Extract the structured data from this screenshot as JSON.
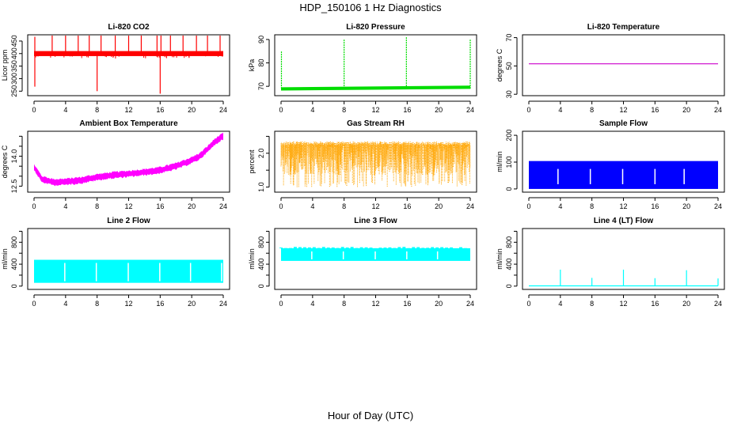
{
  "title": "HDP_150106  1 Hz Diagnostics",
  "xlabel": "Hour of Day (UTC)",
  "chart_data": [
    {
      "type": "line",
      "title": "Li-820 CO2",
      "ylabel": "Licor ppm",
      "color": "#ff0000",
      "xlim": [
        0,
        24
      ],
      "ylim": [
        232,
        475
      ],
      "xticks": [
        0,
        4,
        8,
        12,
        16,
        20,
        24
      ],
      "yticks": [
        250,
        300,
        350,
        400,
        450
      ],
      "band": [
        390,
        410
      ],
      "spikes_up": [
        [
          0.1,
          467
        ],
        [
          2.3,
          472
        ],
        [
          4.0,
          472
        ],
        [
          5.6,
          472
        ],
        [
          7.0,
          472
        ],
        [
          8.5,
          472
        ],
        [
          10.3,
          472
        ],
        [
          12.0,
          472
        ],
        [
          13.6,
          472
        ],
        [
          15.6,
          472
        ],
        [
          16.1,
          472
        ],
        [
          17.3,
          472
        ],
        [
          18.9,
          472
        ],
        [
          20.6,
          472
        ],
        [
          22.0,
          472
        ],
        [
          23.6,
          472
        ]
      ],
      "spikes_down": [
        [
          0.1,
          268
        ],
        [
          8.0,
          250
        ],
        [
          16.0,
          240
        ]
      ]
    },
    {
      "type": "line",
      "title": "Li-820 Pressure",
      "ylabel": "kPa",
      "color": "#00dd00",
      "xlim": [
        0,
        24
      ],
      "ylim": [
        66,
        92
      ],
      "xticks": [
        0,
        4,
        8,
        12,
        16,
        20,
        24
      ],
      "yticks": [
        70,
        80,
        90
      ],
      "band_start": [
        68.2,
        69.6
      ],
      "band_end": [
        68.9,
        70.3
      ],
      "spikes_up": [
        [
          0.05,
          85
        ],
        [
          8.0,
          90
        ],
        [
          15.9,
          91
        ],
        [
          24.0,
          90
        ]
      ]
    },
    {
      "type": "line",
      "title": "Li-820 Temperature",
      "ylabel": "degrees C",
      "color": "#cc00cc",
      "xlim": [
        0,
        24
      ],
      "ylim": [
        29,
        72
      ],
      "xticks": [
        0,
        4,
        8,
        12,
        16,
        20,
        24
      ],
      "yticks": [
        30,
        50,
        70
      ],
      "constant": 51.5
    },
    {
      "type": "line",
      "title": "Ambient Box Temperature",
      "ylabel": "degrees C",
      "color": "#ff00ff",
      "xlim": [
        0,
        24
      ],
      "ylim": [
        12.2,
        15.25
      ],
      "xticks": [
        0,
        4,
        8,
        12,
        16,
        20,
        24
      ],
      "yticks": [
        12.5,
        13.0,
        13.5,
        14.0,
        14.5,
        15.0
      ],
      "ytick_labels": [
        "12.5",
        "",
        "",
        "14.0",
        "",
        ""
      ],
      "trend": [
        [
          0,
          13.45
        ],
        [
          1.0,
          12.85
        ],
        [
          2.5,
          12.7
        ],
        [
          4,
          12.72
        ],
        [
          6,
          12.8
        ],
        [
          8,
          12.95
        ],
        [
          10,
          13.05
        ],
        [
          12,
          13.12
        ],
        [
          14,
          13.2
        ],
        [
          16,
          13.3
        ],
        [
          18,
          13.5
        ],
        [
          20,
          13.8
        ],
        [
          21,
          14.0
        ],
        [
          22,
          14.35
        ],
        [
          23,
          14.75
        ],
        [
          24,
          15.0
        ]
      ],
      "half_width": 0.15
    },
    {
      "type": "line",
      "title": "Gas Stream RH",
      "ylabel": "percent",
      "color": "#ffa500",
      "xlim": [
        0,
        24
      ],
      "ylim": [
        0.85,
        2.65
      ],
      "xticks": [
        0,
        4,
        8,
        12,
        16,
        20,
        24
      ],
      "yticks": [
        1.0,
        1.5,
        2.0,
        2.5
      ],
      "ytick_labels": [
        "1.0",
        "",
        "2.0",
        ""
      ],
      "upper": 2.35,
      "lower": 1.0
    },
    {
      "type": "line",
      "title": "Sample Flow",
      "ylabel": "ml/min",
      "color": "#0000ff",
      "xlim": [
        0,
        24
      ],
      "ylim": [
        -12,
        215
      ],
      "xticks": [
        0,
        4,
        8,
        12,
        16,
        20,
        24
      ],
      "yticks": [
        0,
        100,
        200
      ],
      "band": [
        0,
        104
      ],
      "gaps": [
        3.7,
        7.8,
        11.9,
        16.0,
        19.7
      ]
    },
    {
      "type": "line",
      "title": "Line 2 Flow",
      "ylabel": "ml/min",
      "color": "#00ffff",
      "xlim": [
        0,
        24
      ],
      "ylim": [
        -60,
        1050
      ],
      "xticks": [
        0,
        4,
        8,
        12,
        16,
        20,
        24
      ],
      "yticks": [
        0,
        200,
        400,
        600,
        800,
        1000
      ],
      "ytick_labels": [
        "0",
        "",
        "400",
        "",
        "800",
        ""
      ],
      "band": [
        60,
        480
      ],
      "gaps": [
        3.9,
        7.9,
        11.95,
        15.95,
        19.85,
        23.8
      ]
    },
    {
      "type": "line",
      "title": "Line 3 Flow",
      "ylabel": "ml/min",
      "color": "#00ffff",
      "xlim": [
        0,
        24
      ],
      "ylim": [
        -60,
        1050
      ],
      "xticks": [
        0,
        4,
        8,
        12,
        16,
        20,
        24
      ],
      "yticks": [
        0,
        200,
        400,
        600,
        800,
        1000
      ],
      "ytick_labels": [
        "0",
        "",
        "400",
        "",
        "800",
        ""
      ],
      "band": [
        460,
        690
      ],
      "gaps": [
        3.9,
        7.9,
        11.95,
        15.95,
        19.85
      ]
    },
    {
      "type": "line",
      "title": "Line 4 (LT) Flow",
      "ylabel": "ml/min",
      "color": "#00ffff",
      "xlim": [
        0,
        24
      ],
      "ylim": [
        -60,
        1050
      ],
      "xticks": [
        0,
        4,
        8,
        12,
        16,
        20,
        24
      ],
      "yticks": [
        0,
        200,
        400,
        600,
        800,
        1000
      ],
      "ytick_labels": [
        "0",
        "",
        "400",
        "",
        "800",
        ""
      ],
      "baseline": 5,
      "spikes_up": [
        [
          4.0,
          300
        ],
        [
          8.0,
          150
        ],
        [
          12.0,
          300
        ],
        [
          16.0,
          145
        ],
        [
          20.0,
          290
        ],
        [
          24.0,
          140
        ]
      ]
    }
  ]
}
